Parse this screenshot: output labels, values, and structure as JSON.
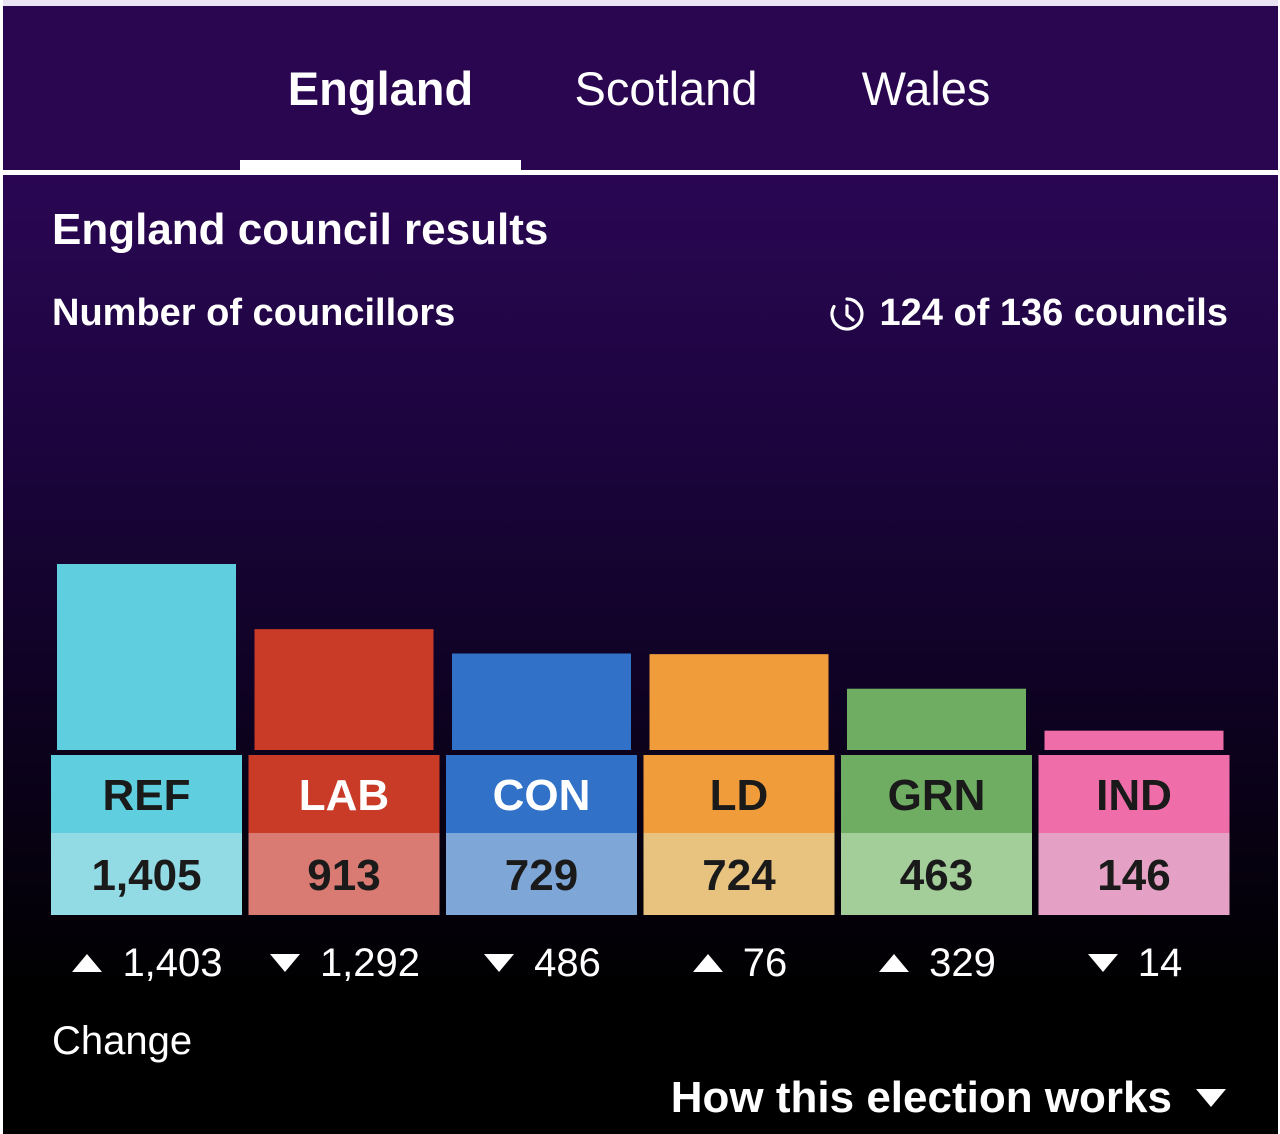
{
  "tabs": [
    {
      "label": "England",
      "active": true
    },
    {
      "label": "Scotland",
      "active": false
    },
    {
      "label": "Wales",
      "active": false
    }
  ],
  "panel": {
    "title": "England council results",
    "subtitle": "Number of councillors",
    "progress": "124 of 136 councils",
    "change_label": "Change",
    "how_link": "How this election works"
  },
  "chart_data": {
    "type": "bar",
    "title": "England council results",
    "subtitle": "Number of councillors",
    "categories": [
      "REF",
      "LAB",
      "CON",
      "LD",
      "GRN",
      "IND"
    ],
    "values": [
      1405,
      913,
      729,
      724,
      463,
      146
    ],
    "value_labels": [
      "1,405",
      "913",
      "729",
      "724",
      "463",
      "146"
    ],
    "change": [
      {
        "direction": "up",
        "label": "1,403"
      },
      {
        "direction": "down",
        "label": "1,292"
      },
      {
        "direction": "down",
        "label": "486"
      },
      {
        "direction": "up",
        "label": "76"
      },
      {
        "direction": "up",
        "label": "329"
      },
      {
        "direction": "down",
        "label": "14"
      }
    ],
    "colors": [
      "#5fcfe0",
      "#c93a27",
      "#3172c8",
      "#f19c3b",
      "#6fae62",
      "#ef6eaa"
    ],
    "value_box_colors": [
      "#92dae4",
      "#d97a73",
      "#7ea7d8",
      "#e8c27f",
      "#a3cd99",
      "#e5a1c5"
    ],
    "label_text_colors": [
      "#1a1a1a",
      "#ffffff",
      "#ffffff",
      "#1a1a1a",
      "#1a1a1a",
      "#1a1a1a"
    ]
  }
}
